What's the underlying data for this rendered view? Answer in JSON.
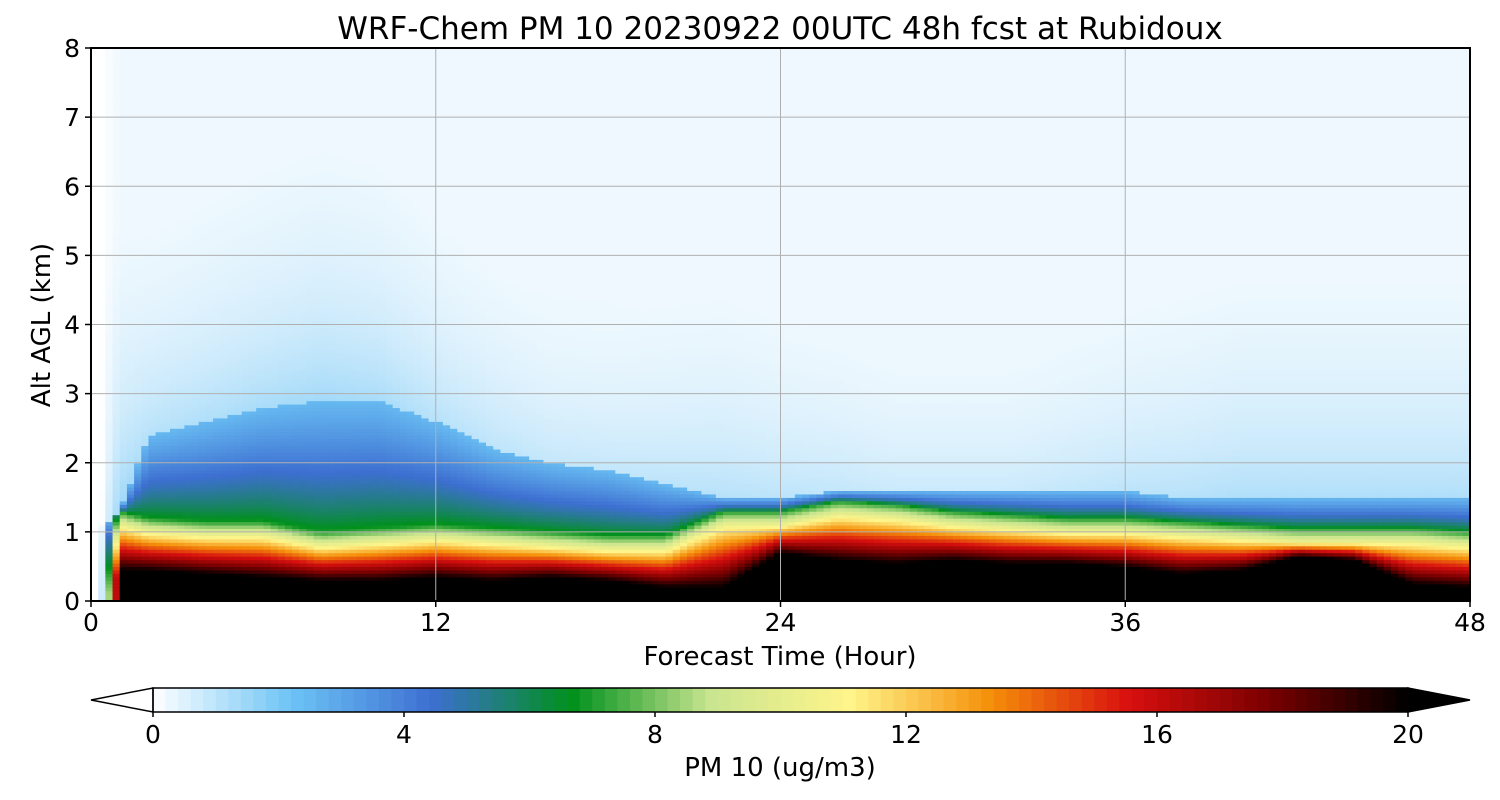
{
  "chart_data": {
    "type": "heatmap",
    "title": "WRF-Chem PM 10  20230922 00UTC 48h fcst at Rubidoux",
    "xlabel": "Forecast Time (Hour)",
    "ylabel": "Alt AGL (km)",
    "xlim": [
      0,
      48
    ],
    "ylim": [
      0,
      8
    ],
    "xticks": [
      "0",
      "12",
      "24",
      "36",
      "48"
    ],
    "yticks": [
      "0",
      "1",
      "2",
      "3",
      "4",
      "5",
      "6",
      "7",
      "8"
    ],
    "grid": true,
    "colorbar": {
      "label": "PM 10  (ug/m3)",
      "ticks": [
        "0",
        "4",
        "8",
        "12",
        "16",
        "20"
      ],
      "range": [
        0,
        20
      ],
      "extend": "both",
      "colors": [
        "#ffffff",
        "#6cc3f5",
        "#3d6fd1",
        "#00901c",
        "#c9e590",
        "#fff58a",
        "#f5900a",
        "#d80f0f",
        "#7a0000",
        "#000000"
      ]
    },
    "profiles_note_key": "profiles",
    "profiles": {
      "hours": [
        0.5,
        1,
        2,
        4,
        6,
        8,
        10,
        12,
        14,
        16,
        18,
        20,
        22,
        24,
        26,
        28,
        30,
        32,
        34,
        36,
        38,
        40,
        42,
        44,
        46,
        48
      ],
      "peak_layer_top_km": [
        0.9,
        1.1,
        1.0,
        0.95,
        0.95,
        0.8,
        0.85,
        0.9,
        0.85,
        0.8,
        0.75,
        0.75,
        1.1,
        1.1,
        1.25,
        1.2,
        1.1,
        1.05,
        1.0,
        1.0,
        0.95,
        0.9,
        0.85,
        0.85,
        0.85,
        0.8
      ],
      "dark_core_top_km": [
        0.0,
        0.45,
        0.45,
        0.4,
        0.35,
        0.3,
        0.3,
        0.35,
        0.3,
        0.35,
        0.3,
        0.2,
        0.2,
        0.7,
        0.6,
        0.55,
        0.6,
        0.55,
        0.55,
        0.5,
        0.4,
        0.45,
        0.65,
        0.6,
        0.25,
        0.2
      ],
      "mixed_layer_top_km": [
        1.1,
        1.3,
        2.4,
        2.6,
        2.8,
        2.9,
        2.9,
        2.6,
        2.2,
        2.0,
        1.9,
        1.7,
        1.5,
        1.5,
        1.6,
        1.6,
        1.6,
        1.6,
        1.6,
        1.6,
        1.5,
        1.5,
        1.5,
        1.5,
        1.5,
        1.5
      ],
      "upper_haze_ug_m3": [
        1.5,
        1.2,
        0.8,
        0.9,
        1.0,
        1.1,
        1.0,
        0.8,
        0.7,
        0.6,
        0.6,
        0.7,
        0.8,
        0.7,
        0.6,
        0.5,
        0.5,
        0.5,
        0.6,
        0.7,
        0.8,
        0.9,
        0.9,
        0.9,
        0.9,
        0.9
      ]
    }
  }
}
